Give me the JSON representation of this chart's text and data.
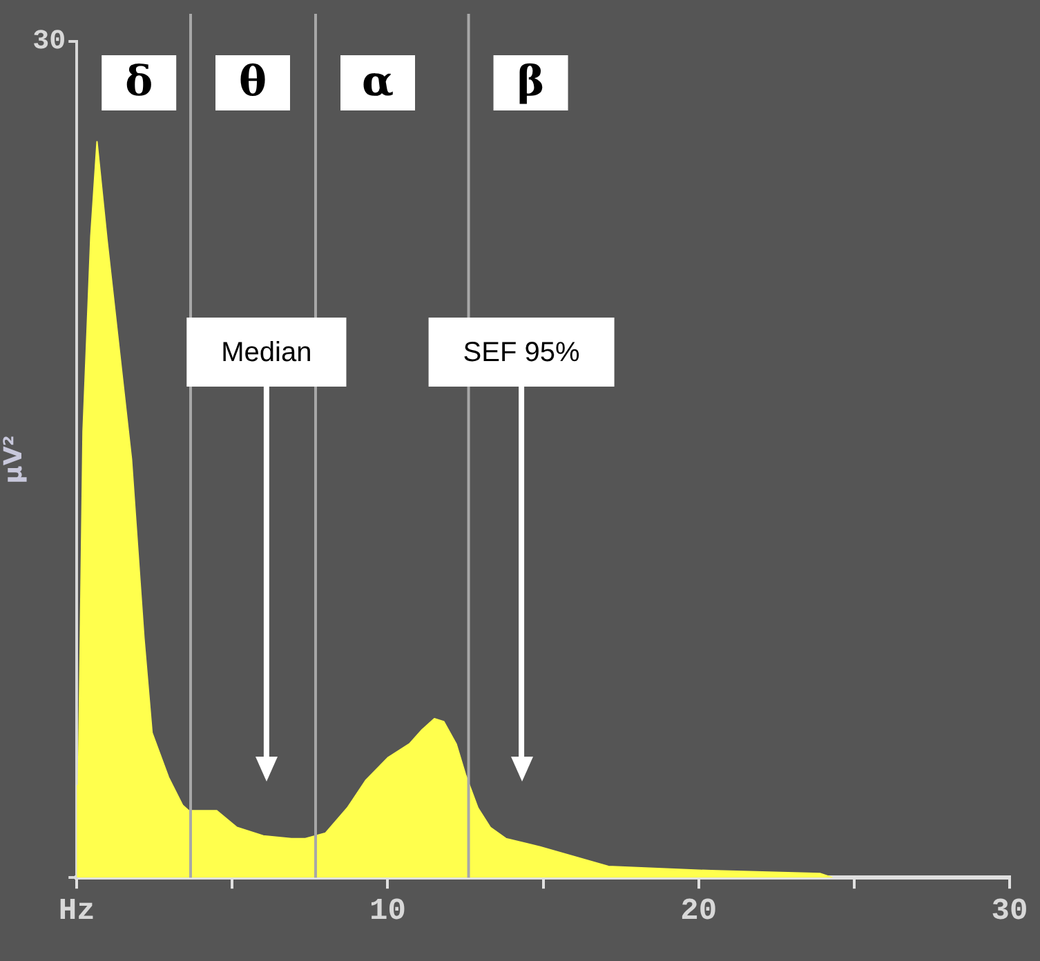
{
  "chart_data": {
    "type": "area",
    "ylabel": "μV²",
    "color": "#ffff4d",
    "x": [
      0,
      0.05,
      0.2,
      0.45,
      0.65,
      0.97,
      1.76,
      2.16,
      2.42,
      2.95,
      3.4,
      3.6,
      4.5,
      5.15,
      6.0,
      6.9,
      7.35,
      8.0,
      8.7,
      9.3,
      10.0,
      10.7,
      11.1,
      11.5,
      11.8,
      12.2,
      12.5,
      12.9,
      13.3,
      13.8,
      14.9,
      17.1,
      20.4,
      23.9,
      24.3
    ],
    "values": [
      3.3,
      3.3,
      16,
      23,
      26.4,
      22.9,
      15.0,
      8.6,
      5.2,
      3.6,
      2.6,
      2.4,
      2.4,
      1.8,
      1.5,
      1.4,
      1.4,
      1.6,
      2.5,
      3.5,
      4.3,
      4.8,
      5.3,
      5.7,
      5.6,
      4.8,
      3.7,
      2.5,
      1.8,
      1.4,
      1.1,
      0.4,
      0.25,
      0.15,
      0
    ],
    "xlim": [
      0,
      30
    ],
    "xticks": [
      {
        "value": 0,
        "label": "Hz"
      },
      {
        "value": 5,
        "label": null
      },
      10,
      {
        "value": 15,
        "label": null
      },
      20,
      {
        "value": 25,
        "label": null
      },
      30
    ],
    "ylim": [
      0,
      30
    ],
    "yticks": [
      {
        "value": 0,
        "label": null
      },
      30
    ],
    "ref_lines": [
      {
        "axis": "x",
        "value": 3.66,
        "label": null,
        "color": "#a8a8a8"
      },
      {
        "axis": "x",
        "value": 7.68,
        "label": null,
        "color": "#a8a8a8"
      },
      {
        "axis": "x",
        "value": 12.6,
        "label": null,
        "color": "#a8a8a8"
      },
      {
        "axis": "x",
        "value": 6.1,
        "label": "Median",
        "color": "#ffffff"
      },
      {
        "axis": "x",
        "value": 14.3,
        "label": "SEF 95%",
        "color": "#ffffff"
      }
    ],
    "annotations": [
      "δ",
      "θ",
      "α",
      "β"
    ],
    "grid": false,
    "legend": false
  }
}
